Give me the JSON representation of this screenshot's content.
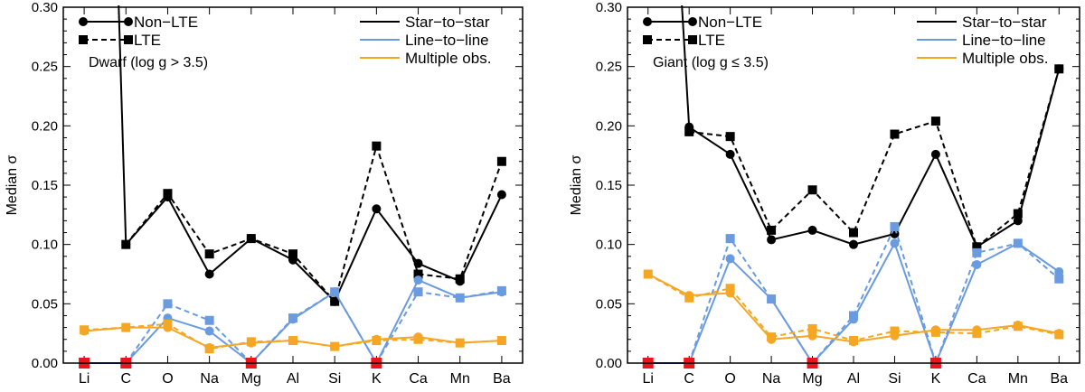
{
  "colors": {
    "star": "#000000",
    "line": "#6a9be0",
    "multiple": "#f5a623",
    "zero_marker": "#e8141e",
    "li_line": "#1f3fbf"
  },
  "chart_data": [
    {
      "type": "line",
      "panel": "left",
      "ylabel": "Median σ",
      "xlabel": "",
      "ylim": [
        0.0,
        0.3
      ],
      "yticks": [
        "0.00",
        "0.05",
        "0.10",
        "0.15",
        "0.20",
        "0.25",
        "0.30"
      ],
      "categories": [
        "Li",
        "C",
        "O",
        "Na",
        "Mg",
        "Al",
        "Si",
        "K",
        "Ca",
        "Mn",
        "Ba"
      ],
      "annotation": "Dwarf (log g > 3.5)",
      "legend_markers": [
        "Non−LTE",
        "LTE"
      ],
      "legend_lines": [
        "Star−to−star",
        "Line−to−line",
        "Multiple obs."
      ],
      "series": [
        {
          "name": "Star−to−star",
          "mode": "Non-LTE",
          "color_key": "star",
          "values": [
            null,
            0.1,
            0.14,
            0.075,
            0.105,
            0.087,
            0.052,
            0.13,
            0.084,
            0.069,
            0.142
          ],
          "offscale_from_previous": true
        },
        {
          "name": "Star−to−star",
          "mode": "LTE",
          "color_key": "star",
          "values": [
            null,
            0.1,
            0.143,
            0.092,
            0.105,
            0.092,
            0.052,
            0.183,
            0.075,
            0.071,
            0.17
          ]
        },
        {
          "name": "Line−to−line",
          "mode": "Non-LTE",
          "color_key": "line",
          "values": [
            0.0,
            0.0,
            0.038,
            0.027,
            0.0,
            0.037,
            0.06,
            0.0,
            0.07,
            0.055,
            0.06
          ]
        },
        {
          "name": "Line−to−line",
          "mode": "LTE",
          "color_key": "line",
          "values": [
            0.0,
            0.0,
            0.05,
            0.036,
            0.0,
            0.038,
            0.06,
            0.0,
            0.06,
            0.055,
            0.061
          ]
        },
        {
          "name": "Multiple obs.",
          "mode": "Non-LTE",
          "color_key": "multiple",
          "values": [
            0.027,
            0.03,
            0.03,
            0.013,
            0.017,
            0.019,
            0.014,
            0.02,
            0.022,
            0.017,
            0.019
          ]
        },
        {
          "name": "Multiple obs.",
          "mode": "LTE",
          "color_key": "multiple",
          "values": [
            0.028,
            0.03,
            0.033,
            0.012,
            0.018,
            0.019,
            0.014,
            0.019,
            0.02,
            0.017,
            0.019
          ]
        }
      ],
      "zero_markers": [
        "Li",
        "C",
        "Mg",
        "K"
      ]
    },
    {
      "type": "line",
      "panel": "right",
      "ylabel": "Median σ",
      "xlabel": "",
      "ylim": [
        0.0,
        0.3
      ],
      "yticks": [
        "0.00",
        "0.05",
        "0.10",
        "0.15",
        "0.20",
        "0.25",
        "0.30"
      ],
      "categories": [
        "Li",
        "C",
        "O",
        "Na",
        "Mg",
        "Al",
        "Si",
        "K",
        "Ca",
        "Mn",
        "Ba"
      ],
      "annotation": "Giant (log g ≤ 3.5)",
      "legend_markers": [
        "Non−LTE",
        "LTE"
      ],
      "legend_lines": [
        "Star−to−star",
        "Line−to−line",
        "Multiple obs."
      ],
      "series": [
        {
          "name": "Star−to−star",
          "mode": "Non-LTE",
          "color_key": "star",
          "values": [
            null,
            0.199,
            0.176,
            0.104,
            0.112,
            0.1,
            0.109,
            0.176,
            0.098,
            0.12,
            0.248
          ],
          "offscale_from_previous": true
        },
        {
          "name": "Star−to−star",
          "mode": "LTE",
          "color_key": "star",
          "values": [
            null,
            0.195,
            0.191,
            0.112,
            0.146,
            0.11,
            0.193,
            0.204,
            0.098,
            0.126,
            0.248
          ]
        },
        {
          "name": "Line−to−line",
          "mode": "Non-LTE",
          "color_key": "line",
          "values": [
            0.0,
            0.0,
            0.088,
            0.054,
            0.0,
            0.037,
            0.101,
            0.0,
            0.083,
            0.101,
            0.077
          ]
        },
        {
          "name": "Line−to−line",
          "mode": "LTE",
          "color_key": "line",
          "values": [
            0.0,
            0.0,
            0.105,
            0.054,
            0.0,
            0.04,
            0.115,
            0.0,
            0.093,
            0.101,
            0.071
          ]
        },
        {
          "name": "Multiple obs.",
          "mode": "Non-LTE",
          "color_key": "multiple",
          "values": [
            0.075,
            0.057,
            0.059,
            0.02,
            0.023,
            0.018,
            0.023,
            0.028,
            0.028,
            0.032,
            0.025
          ]
        },
        {
          "name": "Multiple obs.",
          "mode": "LTE",
          "color_key": "multiple",
          "values": [
            0.075,
            0.055,
            0.063,
            0.022,
            0.029,
            0.019,
            0.027,
            0.026,
            0.025,
            0.031,
            0.024
          ]
        }
      ],
      "zero_markers": [
        "Li",
        "C",
        "Mg",
        "K"
      ]
    }
  ]
}
